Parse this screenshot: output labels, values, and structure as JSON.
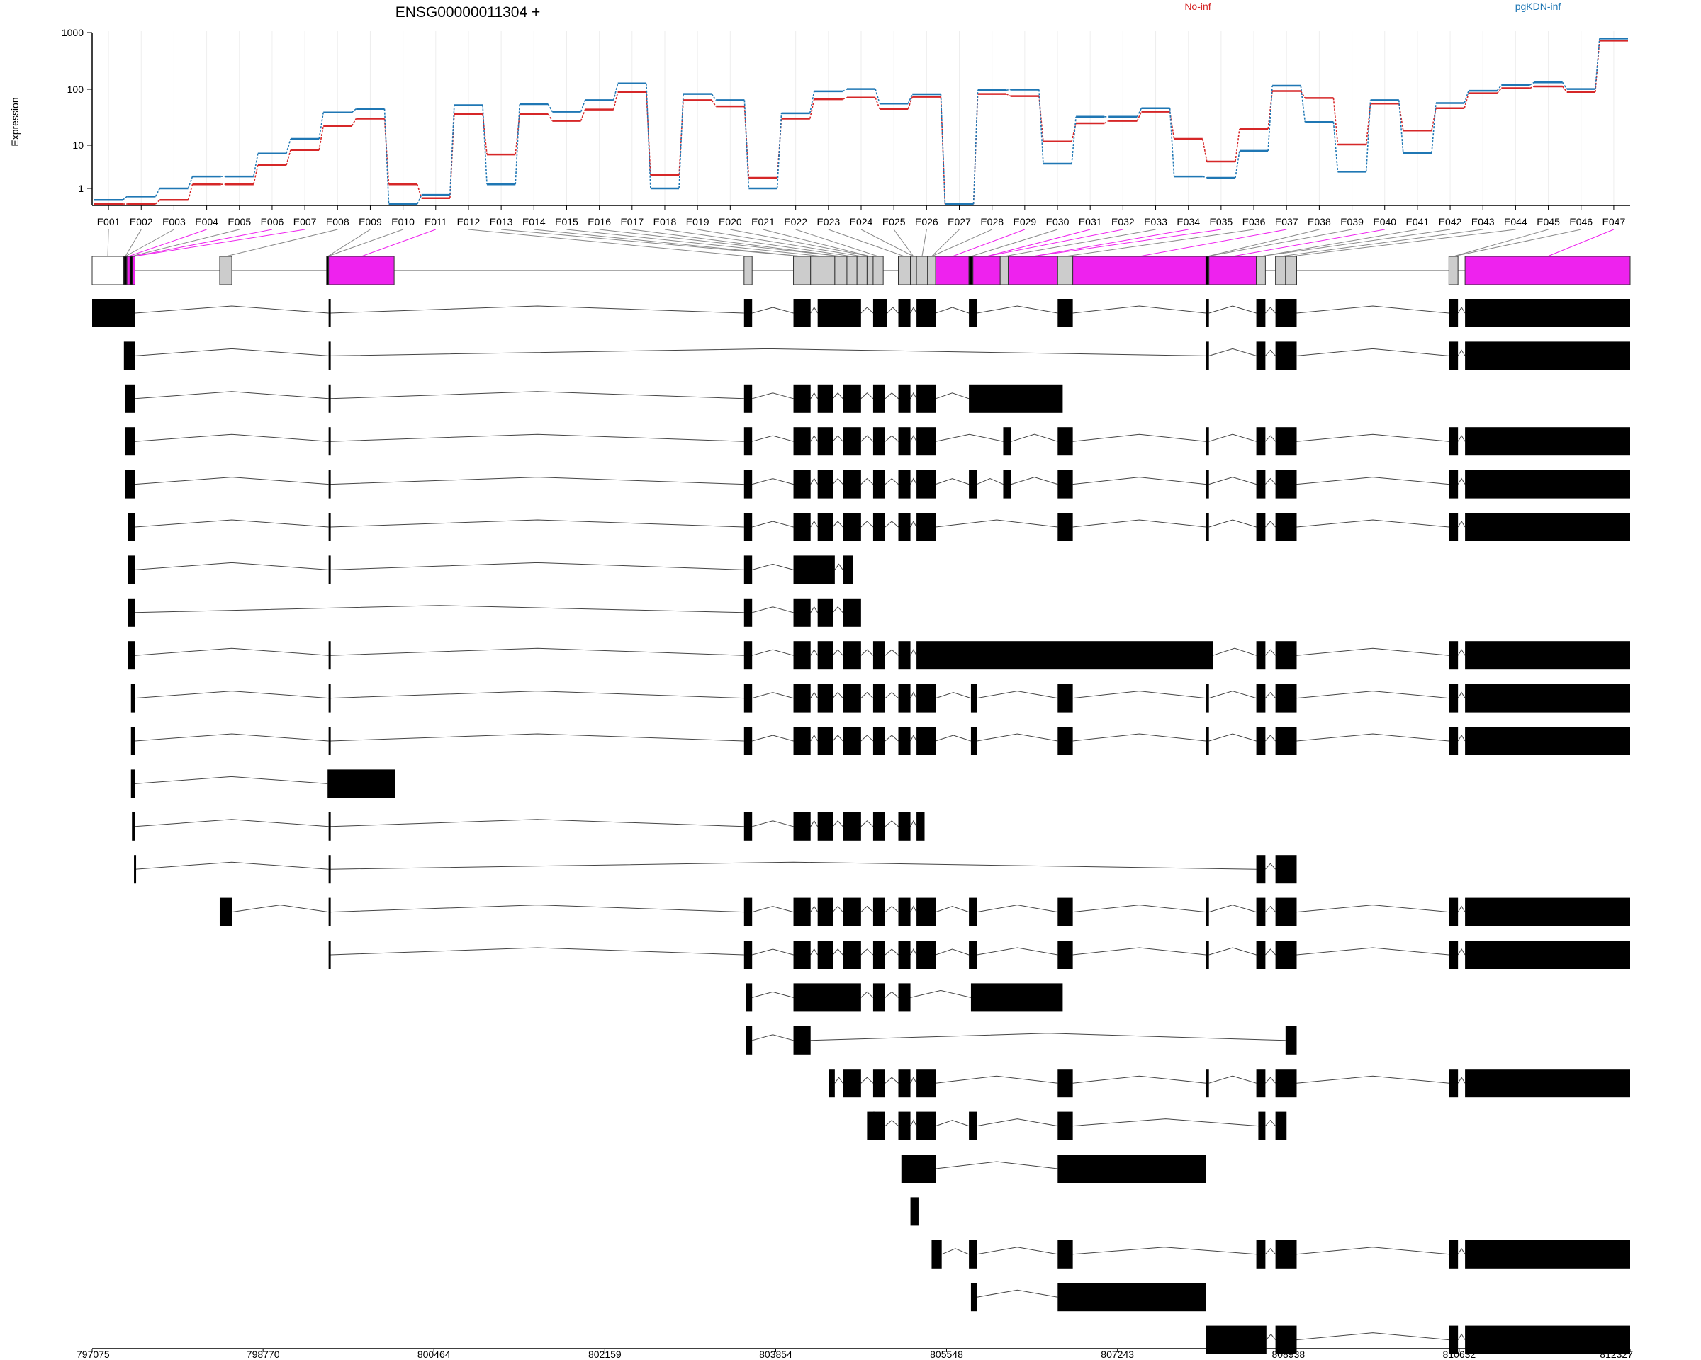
{
  "chart_data": {
    "type": "line",
    "title": "ENSG00000011304 +",
    "ylabel": "Expression",
    "y_scale": "log",
    "ylim": [
      0.5,
      1000
    ],
    "y_ticks": [
      "1000",
      "100",
      "10",
      "1"
    ],
    "legend": {
      "placement": "top-right"
    },
    "colors": {
      "No-inf": "#d62728",
      "pgKDN-inf": "#1f77b4",
      "exon_highlight": "#ee22ee",
      "exon_default": "#cccccc",
      "transcript": "#000000",
      "connector": "#888888"
    },
    "exons": [
      "E001",
      "E002",
      "E003",
      "E004",
      "E005",
      "E006",
      "E007",
      "E008",
      "E009",
      "E010",
      "E011",
      "E012",
      "E013",
      "E014",
      "E015",
      "E016",
      "E017",
      "E018",
      "E019",
      "E020",
      "E021",
      "E022",
      "E023",
      "E024",
      "E025",
      "E026",
      "E027",
      "E028",
      "E029",
      "E030",
      "E031",
      "E032",
      "E033",
      "E034",
      "E035",
      "E036",
      "E037",
      "E038",
      "E039",
      "E040",
      "E041",
      "E042",
      "E043",
      "E044",
      "E045",
      "E046",
      "E047"
    ],
    "series": [
      {
        "name": "No-inf",
        "values": [
          0.5,
          0.5,
          0.6,
          1.2,
          1.2,
          2.8,
          5.5,
          16,
          22,
          1.2,
          0.65,
          27,
          4.5,
          27,
          20,
          33,
          72,
          1.8,
          50,
          38,
          1.6,
          22,
          52,
          56,
          34,
          58,
          0.5,
          66,
          60,
          8,
          18,
          20,
          30,
          9,
          3.3,
          14,
          75,
          55,
          7,
          43,
          13,
          35,
          68,
          85,
          92,
          72,
          700
        ]
      },
      {
        "name": "pgKDN-inf",
        "values": [
          0.6,
          0.7,
          1.0,
          1.7,
          1.7,
          4.7,
          9,
          29,
          34,
          0.5,
          0.75,
          40,
          1.2,
          42,
          30,
          50,
          105,
          1.0,
          66,
          50,
          1.0,
          28,
          74,
          82,
          43,
          65,
          0.5,
          78,
          80,
          3,
          24,
          24,
          35,
          1.7,
          1.6,
          5.3,
          95,
          19,
          2.1,
          50,
          4.8,
          44,
          76,
          98,
          110,
          82,
          770
        ]
      }
    ],
    "genomic_axis": {
      "range": [
        797075,
        812327
      ],
      "ticks": [
        "797075",
        "798770",
        "800464",
        "802159",
        "803854",
        "805548",
        "807243",
        "808938",
        "810632",
        "812327"
      ]
    },
    "exon_model": [
      {
        "start": 797075,
        "end": 797385,
        "fill": "white"
      },
      {
        "start": 797390,
        "end": 797418,
        "fill": "black"
      },
      {
        "start": 797420,
        "end": 797450,
        "fill": "magenta"
      },
      {
        "start": 797452,
        "end": 797475,
        "fill": "black"
      },
      {
        "start": 797477,
        "end": 797500,
        "fill": "magenta"
      },
      {
        "start": 798340,
        "end": 798460,
        "fill": "gray"
      },
      {
        "start": 799400,
        "end": 799420,
        "fill": "black"
      },
      {
        "start": 799420,
        "end": 800070,
        "fill": "magenta"
      },
      {
        "start": 803540,
        "end": 803620,
        "fill": "gray"
      },
      {
        "start": 804030,
        "end": 804200,
        "fill": "gray"
      },
      {
        "start": 804200,
        "end": 804440,
        "fill": "gray"
      },
      {
        "start": 804440,
        "end": 804560,
        "fill": "gray"
      },
      {
        "start": 804560,
        "end": 804660,
        "fill": "gray"
      },
      {
        "start": 804660,
        "end": 804760,
        "fill": "gray"
      },
      {
        "start": 804760,
        "end": 804820,
        "fill": "gray"
      },
      {
        "start": 804820,
        "end": 804920,
        "fill": "gray"
      },
      {
        "start": 805070,
        "end": 805190,
        "fill": "gray"
      },
      {
        "start": 805190,
        "end": 805250,
        "fill": "gray"
      },
      {
        "start": 805250,
        "end": 805360,
        "fill": "gray"
      },
      {
        "start": 805360,
        "end": 805440,
        "fill": "gray"
      },
      {
        "start": 805440,
        "end": 805770,
        "fill": "magenta"
      },
      {
        "start": 805770,
        "end": 805810,
        "fill": "black"
      },
      {
        "start": 805810,
        "end": 806080,
        "fill": "magenta"
      },
      {
        "start": 806080,
        "end": 806160,
        "fill": "gray"
      },
      {
        "start": 806160,
        "end": 806650,
        "fill": "magenta"
      },
      {
        "start": 806650,
        "end": 806800,
        "fill": "gray"
      },
      {
        "start": 806800,
        "end": 808120,
        "fill": "magenta"
      },
      {
        "start": 808120,
        "end": 808150,
        "fill": "black"
      },
      {
        "start": 808150,
        "end": 808620,
        "fill": "magenta"
      },
      {
        "start": 808620,
        "end": 808710,
        "fill": "gray"
      },
      {
        "start": 808810,
        "end": 808910,
        "fill": "gray"
      },
      {
        "start": 808910,
        "end": 809020,
        "fill": "gray"
      },
      {
        "start": 810530,
        "end": 810620,
        "fill": "gray"
      },
      {
        "start": 810690,
        "end": 812327,
        "fill": "magenta"
      }
    ],
    "transcripts": [
      [
        [
          797075,
          797500
        ],
        [
          799420,
          799440
        ],
        [
          803540,
          803620
        ],
        [
          804030,
          804200
        ],
        [
          804270,
          804700
        ],
        [
          804820,
          804960
        ],
        [
          805070,
          805190
        ],
        [
          805250,
          805440
        ],
        [
          805770,
          805850
        ],
        [
          806650,
          806800
        ],
        [
          808120,
          808150
        ],
        [
          808620,
          808710
        ],
        [
          808810,
          809020
        ],
        [
          810530,
          810620
        ],
        [
          810690,
          812327
        ]
      ],
      [
        [
          797390,
          797500
        ],
        [
          799420,
          799440
        ],
        [
          808120,
          808150
        ],
        [
          808620,
          808710
        ],
        [
          808810,
          809020
        ],
        [
          810530,
          810620
        ],
        [
          810690,
          812327
        ]
      ],
      [
        [
          797400,
          797500
        ],
        [
          799420,
          799440
        ],
        [
          803540,
          803620
        ],
        [
          804030,
          804200
        ],
        [
          804270,
          804420
        ],
        [
          804520,
          804700
        ],
        [
          804820,
          804940
        ],
        [
          805070,
          805190
        ],
        [
          805250,
          805440
        ],
        [
          805770,
          806700
        ]
      ],
      [
        [
          797400,
          797500
        ],
        [
          799420,
          799440
        ],
        [
          803540,
          803620
        ],
        [
          804030,
          804200
        ],
        [
          804270,
          804420
        ],
        [
          804520,
          804700
        ],
        [
          804820,
          804940
        ],
        [
          805070,
          805190
        ],
        [
          805250,
          805440
        ],
        [
          806110,
          806190
        ],
        [
          806650,
          806800
        ],
        [
          808120,
          808150
        ],
        [
          808620,
          808710
        ],
        [
          808810,
          809020
        ],
        [
          810530,
          810620
        ],
        [
          810690,
          812327
        ]
      ],
      [
        [
          797400,
          797500
        ],
        [
          799420,
          799440
        ],
        [
          803540,
          803620
        ],
        [
          804030,
          804200
        ],
        [
          804270,
          804420
        ],
        [
          804520,
          804700
        ],
        [
          804820,
          804940
        ],
        [
          805070,
          805190
        ],
        [
          805250,
          805440
        ],
        [
          805770,
          805850
        ],
        [
          806110,
          806190
        ],
        [
          806650,
          806800
        ],
        [
          808120,
          808150
        ],
        [
          808620,
          808710
        ],
        [
          808810,
          809020
        ],
        [
          810530,
          810620
        ],
        [
          810690,
          812327
        ]
      ],
      [
        [
          797430,
          797500
        ],
        [
          799420,
          799440
        ],
        [
          803540,
          803620
        ],
        [
          804030,
          804200
        ],
        [
          804270,
          804420
        ],
        [
          804520,
          804700
        ],
        [
          804820,
          804940
        ],
        [
          805070,
          805190
        ],
        [
          805250,
          805440
        ],
        [
          806650,
          806800
        ],
        [
          808120,
          808150
        ],
        [
          808620,
          808710
        ],
        [
          808810,
          809020
        ],
        [
          810530,
          810620
        ],
        [
          810690,
          812327
        ]
      ],
      [
        [
          797430,
          797500
        ],
        [
          799420,
          799440
        ],
        [
          803540,
          803620
        ],
        [
          804030,
          804440
        ],
        [
          804520,
          804620
        ]
      ],
      [
        [
          797430,
          797500
        ],
        [
          803540,
          803620
        ],
        [
          804030,
          804200
        ],
        [
          804270,
          804420
        ],
        [
          804520,
          804700
        ]
      ],
      [
        [
          797430,
          797500
        ],
        [
          799420,
          799440
        ],
        [
          803540,
          803620
        ],
        [
          804030,
          804200
        ],
        [
          804270,
          804420
        ],
        [
          804520,
          804700
        ],
        [
          804820,
          804940
        ],
        [
          805070,
          805190
        ],
        [
          805250,
          808190
        ],
        [
          808620,
          808710
        ],
        [
          808810,
          809020
        ],
        [
          810530,
          810620
        ],
        [
          810690,
          812327
        ]
      ],
      [
        [
          797460,
          797500
        ],
        [
          799420,
          799440
        ],
        [
          803540,
          803620
        ],
        [
          804030,
          804200
        ],
        [
          804270,
          804420
        ],
        [
          804520,
          804700
        ],
        [
          804820,
          804940
        ],
        [
          805070,
          805190
        ],
        [
          805250,
          805440
        ],
        [
          805790,
          805850
        ],
        [
          806650,
          806800
        ],
        [
          808120,
          808150
        ],
        [
          808620,
          808710
        ],
        [
          808810,
          809020
        ],
        [
          810530,
          810620
        ],
        [
          810690,
          812327
        ]
      ],
      [
        [
          797460,
          797500
        ],
        [
          799420,
          799440
        ],
        [
          803540,
          803620
        ],
        [
          804030,
          804200
        ],
        [
          804270,
          804420
        ],
        [
          804520,
          804700
        ],
        [
          804820,
          804940
        ],
        [
          805070,
          805190
        ],
        [
          805250,
          805440
        ],
        [
          805790,
          805850
        ],
        [
          806650,
          806800
        ],
        [
          808120,
          808150
        ],
        [
          808620,
          808710
        ],
        [
          808810,
          809020
        ],
        [
          810530,
          810620
        ],
        [
          810690,
          812327
        ]
      ],
      [
        [
          797460,
          797500
        ],
        [
          799410,
          800080
        ]
      ],
      [
        [
          797470,
          797500
        ],
        [
          799420,
          799440
        ],
        [
          803540,
          803620
        ],
        [
          804030,
          804200
        ],
        [
          804270,
          804420
        ],
        [
          804520,
          804700
        ],
        [
          804820,
          804940
        ],
        [
          805070,
          805190
        ],
        [
          805250,
          805330
        ]
      ],
      [
        [
          797490,
          797500
        ],
        [
          799420,
          799440
        ],
        [
          808620,
          808710
        ],
        [
          808810,
          809020
        ]
      ],
      [
        [
          798340,
          798460
        ],
        [
          799420,
          799440
        ],
        [
          803540,
          803620
        ],
        [
          804030,
          804200
        ],
        [
          804270,
          804420
        ],
        [
          804520,
          804700
        ],
        [
          804820,
          804940
        ],
        [
          805070,
          805190
        ],
        [
          805250,
          805440
        ],
        [
          805770,
          805850
        ],
        [
          806650,
          806800
        ],
        [
          808120,
          808150
        ],
        [
          808620,
          808710
        ],
        [
          808810,
          809020
        ],
        [
          810530,
          810620
        ],
        [
          810690,
          812327
        ]
      ],
      [
        [
          799420,
          799440
        ],
        [
          803540,
          803620
        ],
        [
          804030,
          804200
        ],
        [
          804270,
          804420
        ],
        [
          804520,
          804700
        ],
        [
          804820,
          804940
        ],
        [
          805070,
          805190
        ],
        [
          805250,
          805440
        ],
        [
          805770,
          805850
        ],
        [
          806650,
          806800
        ],
        [
          808120,
          808150
        ],
        [
          808620,
          808710
        ],
        [
          808810,
          809020
        ],
        [
          810530,
          810620
        ],
        [
          810690,
          812327
        ]
      ],
      [
        [
          803560,
          803620
        ],
        [
          804030,
          804700
        ],
        [
          804820,
          804940
        ],
        [
          805070,
          805190
        ],
        [
          805790,
          806700
        ]
      ],
      [
        [
          803560,
          803620
        ],
        [
          804030,
          804200
        ],
        [
          808910,
          809020
        ]
      ],
      [
        [
          804380,
          804440
        ],
        [
          804520,
          804700
        ],
        [
          804820,
          804940
        ],
        [
          805070,
          805190
        ],
        [
          805250,
          805440
        ],
        [
          806650,
          806800
        ],
        [
          808120,
          808150
        ],
        [
          808620,
          808710
        ],
        [
          808810,
          809020
        ],
        [
          810530,
          810620
        ],
        [
          810690,
          812327
        ]
      ],
      [
        [
          804760,
          804840
        ],
        [
          804820,
          804940
        ],
        [
          805070,
          805190
        ],
        [
          805250,
          805440
        ],
        [
          805770,
          805850
        ],
        [
          806650,
          806800
        ],
        [
          808640,
          808710
        ],
        [
          808810,
          808920
        ]
      ],
      [
        [
          805100,
          805440
        ],
        [
          806650,
          808120
        ]
      ],
      [
        [
          805190,
          805270
        ]
      ],
      [
        [
          805400,
          805500
        ],
        [
          805770,
          805850
        ],
        [
          806650,
          806800
        ],
        [
          808620,
          808710
        ],
        [
          808810,
          809020
        ],
        [
          810530,
          810620
        ],
        [
          810690,
          812327
        ]
      ],
      [
        [
          805790,
          805850
        ],
        [
          806650,
          808120
        ]
      ],
      [
        [
          808120,
          808720
        ],
        [
          808810,
          809020
        ],
        [
          810530,
          810620
        ],
        [
          810690,
          812327
        ]
      ]
    ]
  }
}
